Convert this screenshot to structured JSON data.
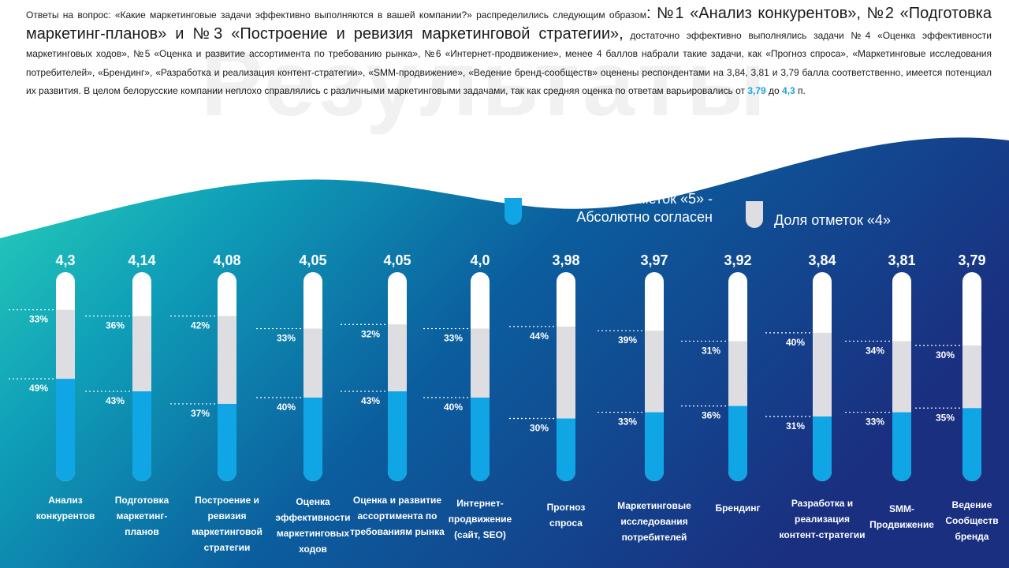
{
  "watermark": "Результаты",
  "intro": {
    "p1": "Ответы на вопрос: «Какие маркетинговые задачи эффективно выполняются в вашей компании?» распределились следующим образом",
    "p1_big": ": №1 «Анализ конкурентов», №2 «Подготовка маркетинг-планов» и №3 «Построение и ревизия маркетинговой стратегии»,",
    "p2": " достаточно эффективно выполнялись задачи №4 «Оценка эффективности маркетинговых ходов», №5 «Оценка и развитие ассортимента по требованию рынка», №6 «Интернет-продвижение», менее 4 баллов набрали такие задачи, как «Прогноз спроса», «Маркетинговые исследования потребителей», «Брендинг», «Разработка и реализация контент-стратегии», «SMM-продвижение», «Ведение бренд-сообществ» оценены респондентами на 3,84, 3,81 и 3,79 балла соответственно, имеется потенциал их развития. В целом белорусские компании неплохо справлялись с различными маркетинговыми задачами, так как средняя оценка по ответам варьировались от ",
    "hl_min": "3,79",
    "mid": " до ",
    "hl_max": "4,3",
    "end": " п."
  },
  "legend": {
    "five": "Доля отметок «5» - Абсолютно согласен",
    "four": "Доля отметок «4»"
  },
  "colors": {
    "five": "#10a6e6",
    "four": "#dedde2",
    "rest": "#ffffff",
    "highlight": "#1ca3e8"
  },
  "chart_data": {
    "type": "bar",
    "stacked": true,
    "categories": [
      "Анализ конкурентов",
      "Подготовка маркетинг-планов",
      "Построение и ревизия маркетинговой стратегии",
      "Оценка эффективности маркетинговых ходов",
      "Оценка и развитие ассортимента по требованиям рынка",
      "Интернет-продвижение (сайт, SEO)",
      "Прогноз спроса",
      "Маркетинговые исследования потребителей",
      "Брендинг",
      "Разработка и реализация контент-стратегии",
      "SMM-Продвижение",
      "Ведение Сообществ бренда"
    ],
    "scores": [
      "4,3",
      "4,14",
      "4,08",
      "4,05",
      "4,05",
      "4,0",
      "3,98",
      "3,97",
      "3,92",
      "3,84",
      "3,81",
      "3,79"
    ],
    "series": [
      {
        "name": "Доля отметок «5» - Абсолютно согласен",
        "values": [
          49,
          43,
          37,
          40,
          43,
          40,
          30,
          33,
          36,
          31,
          33,
          35
        ]
      },
      {
        "name": "Доля отметок «4»",
        "values": [
          33,
          36,
          42,
          33,
          32,
          33,
          44,
          39,
          31,
          40,
          34,
          30
        ]
      }
    ],
    "ylim": [
      0,
      100
    ]
  }
}
